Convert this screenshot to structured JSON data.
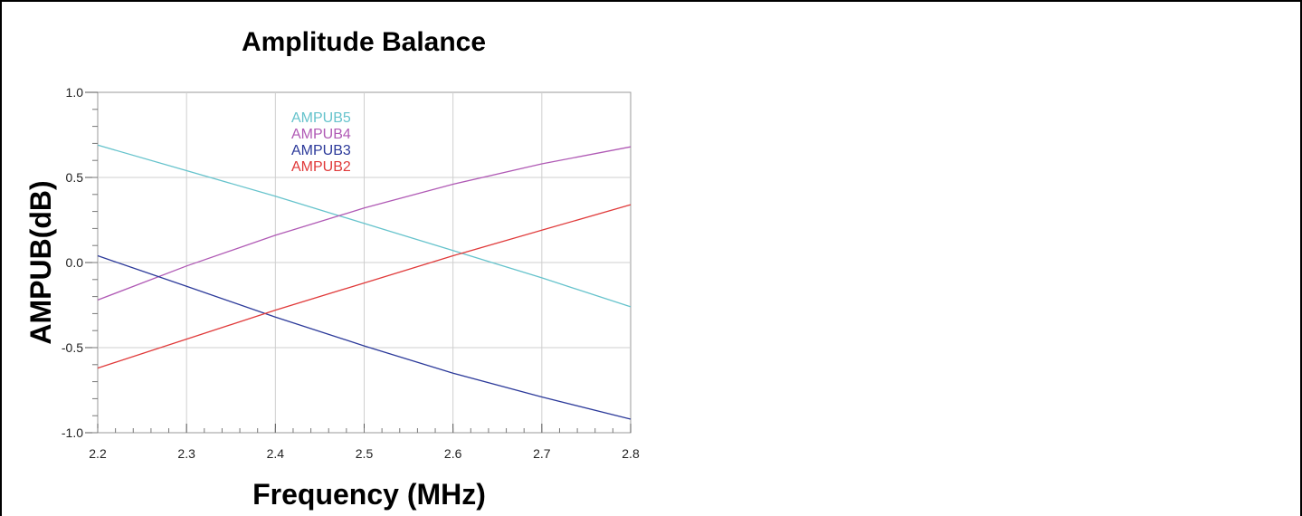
{
  "chart_data": {
    "type": "line",
    "title": "Amplitude Balance",
    "xlabel": "Frequency (MHz)",
    "ylabel": "AMPUB(dB)",
    "xlim": [
      2.2,
      2.8
    ],
    "ylim": [
      -1.0,
      1.0
    ],
    "x_ticks": [
      "2.2",
      "2.3",
      "2.4",
      "2.5",
      "2.6",
      "2.7",
      "2.8"
    ],
    "y_ticks": [
      "1.0",
      "0.5",
      "0.0",
      "-0.5",
      "-1.0"
    ],
    "grid": true,
    "legend_placement": "top-center",
    "x": [
      2.2,
      2.3,
      2.4,
      2.5,
      2.6,
      2.7,
      2.8
    ],
    "series": [
      {
        "name": "AMPUB5",
        "color": "#66c3cc",
        "values": [
          0.69,
          0.54,
          0.39,
          0.23,
          0.07,
          -0.09,
          -0.26
        ]
      },
      {
        "name": "AMPUB4",
        "color": "#b05ab5",
        "values": [
          -0.22,
          -0.02,
          0.16,
          0.32,
          0.46,
          0.58,
          0.68
        ]
      },
      {
        "name": "AMPUB3",
        "color": "#2c3a9a",
        "values": [
          0.04,
          -0.14,
          -0.32,
          -0.49,
          -0.65,
          -0.79,
          -0.92
        ]
      },
      {
        "name": "AMPUB2",
        "color": "#e03a3a",
        "values": [
          -0.62,
          -0.45,
          -0.28,
          -0.12,
          0.04,
          0.19,
          0.34
        ]
      }
    ]
  }
}
